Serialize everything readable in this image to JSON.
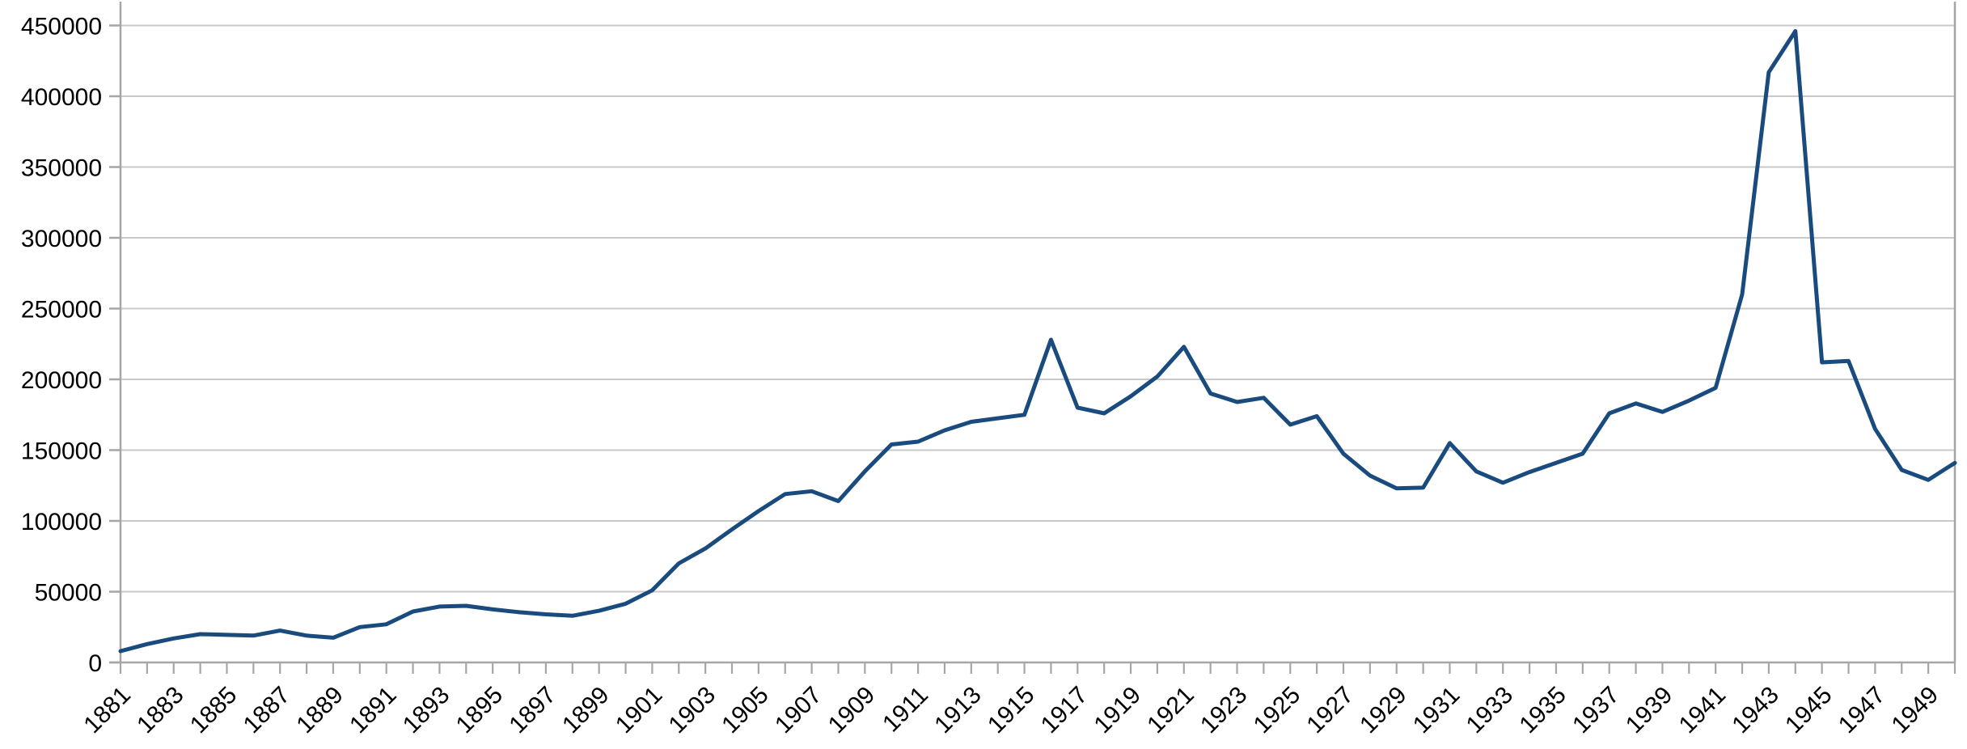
{
  "chart_data": {
    "type": "line",
    "title": "",
    "xlabel": "",
    "ylabel": "",
    "categories": [
      1881,
      1882,
      1883,
      1884,
      1885,
      1886,
      1887,
      1888,
      1889,
      1890,
      1891,
      1892,
      1893,
      1894,
      1895,
      1896,
      1897,
      1898,
      1899,
      1900,
      1901,
      1902,
      1903,
      1904,
      1905,
      1906,
      1907,
      1908,
      1909,
      1910,
      1911,
      1912,
      1913,
      1914,
      1915,
      1916,
      1917,
      1918,
      1919,
      1920,
      1921,
      1922,
      1923,
      1924,
      1925,
      1926,
      1927,
      1928,
      1929,
      1930,
      1931,
      1932,
      1933,
      1934,
      1935,
      1936,
      1937,
      1938,
      1939,
      1940,
      1941,
      1942,
      1943,
      1944,
      1945,
      1946,
      1947,
      1948,
      1949,
      1950
    ],
    "series": [
      {
        "name": "value",
        "values": [
          8000,
          13000,
          17000,
          20000,
          19500,
          19000,
          22500,
          19000,
          17500,
          25000,
          27000,
          36000,
          39500,
          40000,
          37500,
          35500,
          34000,
          33000,
          36500,
          41500,
          51000,
          70000,
          80500,
          94000,
          107000,
          119000,
          121000,
          114000,
          135000,
          154000,
          156000,
          164000,
          170000,
          172500,
          175000,
          228000,
          180000,
          176000,
          188000,
          202000,
          223000,
          190000,
          184000,
          187000,
          168000,
          174000,
          147500,
          132000,
          123000,
          123500,
          155000,
          135000,
          127000,
          134500,
          141000,
          147500,
          176000,
          183000,
          177000,
          185000,
          194000,
          260000,
          417000,
          446000,
          212000,
          213000,
          165000,
          136000,
          129000,
          141000
        ]
      }
    ],
    "ylim": [
      0,
      450000
    ],
    "ytick_step": 50000,
    "ytick_labels": [
      "0",
      "50000",
      "100000",
      "150000",
      "200000",
      "250000",
      "300000",
      "350000",
      "400000",
      "450000"
    ],
    "x_label_interval": 2,
    "x_label_rotation_deg": -45,
    "grid": true,
    "legend_position": "none",
    "colors": {
      "line": "#1a4b7e",
      "gridline": "#c9c9c9",
      "axis": "#a6a6a6",
      "tick": "#a6a6a6",
      "label_text": "#000000",
      "background": "#ffffff"
    }
  }
}
